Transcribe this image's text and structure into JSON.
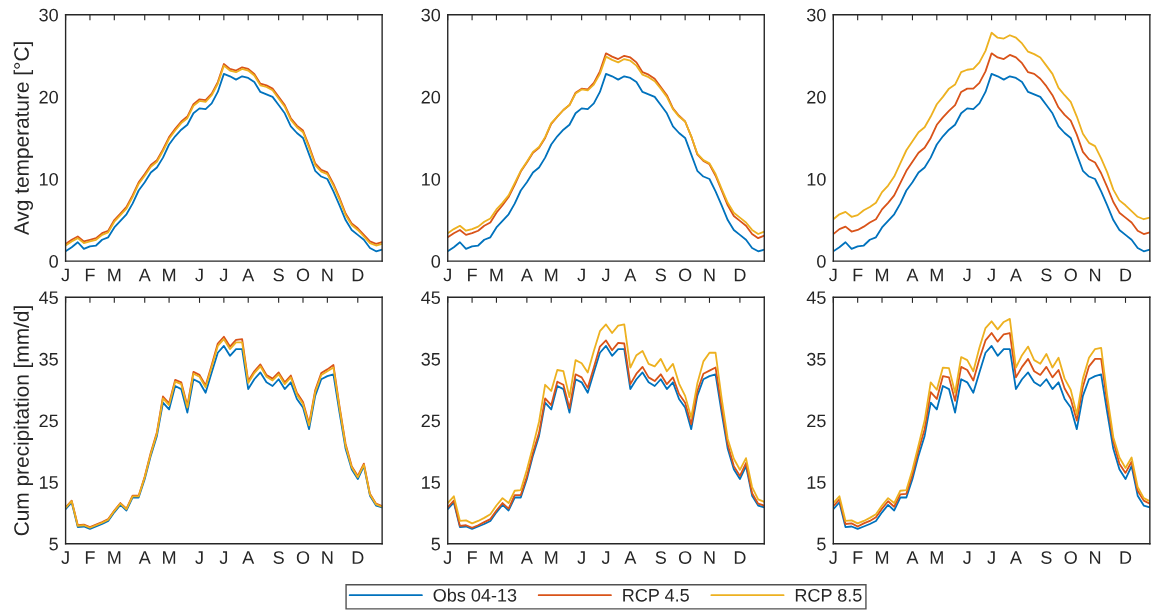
{
  "chart_data": [
    {
      "type": "line",
      "ylabel": "Avg temperature [°C]",
      "ylim": [
        0,
        30
      ],
      "yticks": [
        0,
        10,
        20,
        30
      ],
      "categories": [
        "J",
        null,
        null,
        null,
        "F",
        null,
        null,
        null,
        "M",
        null,
        null,
        null,
        null,
        "A",
        null,
        null,
        null,
        "M",
        null,
        null,
        null,
        null,
        "J",
        null,
        null,
        null,
        "J",
        null,
        null,
        null,
        "A",
        null,
        null,
        null,
        null,
        "S",
        null,
        null,
        null,
        "O",
        null,
        null,
        null,
        "N",
        null,
        null,
        null,
        null,
        "D",
        null,
        null,
        null,
        null
      ],
      "series": [
        {
          "color": "#0072bd",
          "values": [
            1.2,
            1.7,
            2.3,
            1.5,
            1.8,
            1.9,
            2.6,
            2.9,
            4.1,
            4.9,
            5.7,
            7.0,
            8.6,
            9.6,
            10.8,
            11.4,
            12.6,
            14.2,
            15.2,
            16.0,
            16.6,
            18.0,
            18.6,
            18.5,
            19.2,
            20.6,
            22.8,
            22.5,
            22.1,
            22.5,
            22.3,
            21.8,
            20.6,
            20.3,
            20.0,
            19.0,
            18.0,
            16.4,
            15.6,
            15.0,
            13.0,
            11.0,
            10.3,
            10.0,
            8.5,
            6.8,
            5.0,
            3.8,
            3.2,
            2.6,
            1.6,
            1.2,
            1.4
          ]
        },
        {
          "color": "#d95319",
          "values": [
            2.1,
            2.6,
            3.0,
            2.4,
            2.6,
            2.8,
            3.4,
            3.7,
            5.0,
            5.8,
            6.6,
            8.0,
            9.6,
            10.6,
            11.7,
            12.3,
            13.6,
            15.1,
            16.1,
            17.0,
            17.6,
            19.1,
            19.7,
            19.6,
            20.4,
            21.8,
            24.0,
            23.4,
            23.2,
            23.6,
            23.4,
            22.8,
            21.6,
            21.4,
            21.0,
            20.0,
            19.0,
            17.4,
            16.5,
            15.9,
            14.0,
            11.9,
            11.1,
            10.8,
            9.4,
            7.7,
            5.8,
            4.6,
            4.0,
            3.2,
            2.4,
            2.1,
            2.3
          ]
        },
        {
          "color": "#edb120",
          "values": [
            1.9,
            2.4,
            2.8,
            2.2,
            2.4,
            2.6,
            3.2,
            3.5,
            4.8,
            5.6,
            6.4,
            7.8,
            9.4,
            10.4,
            11.5,
            12.1,
            13.4,
            14.9,
            15.9,
            16.8,
            17.4,
            18.9,
            19.5,
            19.4,
            20.2,
            21.6,
            23.8,
            23.2,
            23.0,
            23.4,
            23.2,
            22.6,
            21.4,
            21.2,
            20.8,
            19.8,
            18.8,
            17.2,
            16.3,
            15.7,
            13.8,
            11.7,
            10.9,
            10.6,
            9.2,
            7.5,
            5.6,
            4.4,
            3.8,
            3.0,
            2.2,
            1.9,
            2.1
          ]
        }
      ]
    },
    {
      "type": "line",
      "ylim": [
        0,
        30
      ],
      "yticks": [
        0,
        10,
        20,
        30
      ],
      "categories": [
        "J",
        null,
        null,
        null,
        "F",
        null,
        null,
        null,
        "M",
        null,
        null,
        null,
        null,
        "A",
        null,
        null,
        null,
        "M",
        null,
        null,
        null,
        null,
        "J",
        null,
        null,
        null,
        "J",
        null,
        null,
        null,
        "A",
        null,
        null,
        null,
        null,
        "S",
        null,
        null,
        null,
        "O",
        null,
        null,
        null,
        "N",
        null,
        null,
        null,
        null,
        "D",
        null,
        null,
        null,
        null
      ],
      "series": [
        {
          "color": "#0072bd",
          "values": [
            1.2,
            1.7,
            2.3,
            1.5,
            1.8,
            1.9,
            2.6,
            2.9,
            4.1,
            4.9,
            5.7,
            7.0,
            8.6,
            9.6,
            10.8,
            11.4,
            12.6,
            14.2,
            15.2,
            16.0,
            16.6,
            18.0,
            18.6,
            18.5,
            19.2,
            20.6,
            22.8,
            22.5,
            22.1,
            22.5,
            22.3,
            21.8,
            20.6,
            20.3,
            20.0,
            19.0,
            18.0,
            16.4,
            15.6,
            15.0,
            13.0,
            11.0,
            10.3,
            10.0,
            8.5,
            6.8,
            5.0,
            3.8,
            3.2,
            2.6,
            1.6,
            1.2,
            1.4
          ]
        },
        {
          "color": "#d95319",
          "values": [
            2.9,
            3.4,
            3.8,
            3.2,
            3.4,
            3.7,
            4.3,
            4.7,
            5.9,
            6.8,
            7.8,
            9.3,
            10.9,
            12.0,
            13.2,
            13.8,
            15.0,
            16.7,
            17.6,
            18.4,
            19.0,
            20.5,
            21.0,
            20.9,
            21.7,
            23.1,
            25.3,
            24.9,
            24.6,
            25.0,
            24.8,
            24.2,
            23.0,
            22.7,
            22.2,
            21.2,
            20.2,
            18.6,
            17.7,
            17.0,
            15.2,
            13.0,
            12.2,
            11.8,
            10.4,
            8.6,
            6.8,
            5.5,
            4.9,
            4.3,
            3.3,
            2.8,
            3.1
          ]
        },
        {
          "color": "#edb120",
          "values": [
            3.4,
            3.9,
            4.3,
            3.7,
            3.9,
            4.2,
            4.8,
            5.2,
            6.3,
            7.1,
            8.0,
            9.5,
            11.0,
            12.1,
            13.3,
            13.9,
            15.1,
            16.8,
            17.6,
            18.4,
            19.0,
            20.4,
            20.9,
            20.8,
            21.5,
            22.8,
            24.9,
            24.5,
            24.2,
            24.6,
            24.4,
            23.8,
            22.7,
            22.4,
            21.9,
            21.0,
            20.0,
            18.5,
            17.6,
            17.0,
            15.2,
            13.1,
            12.3,
            11.9,
            10.6,
            8.8,
            7.1,
            5.9,
            5.3,
            4.7,
            3.8,
            3.3,
            3.6
          ]
        }
      ]
    },
    {
      "type": "line",
      "ylim": [
        0,
        30
      ],
      "yticks": [
        0,
        10,
        20,
        30
      ],
      "categories": [
        "J",
        null,
        null,
        null,
        "F",
        null,
        null,
        null,
        "M",
        null,
        null,
        null,
        null,
        "A",
        null,
        null,
        null,
        "M",
        null,
        null,
        null,
        null,
        "J",
        null,
        null,
        null,
        "J",
        null,
        null,
        null,
        "A",
        null,
        null,
        null,
        null,
        "S",
        null,
        null,
        null,
        "O",
        null,
        null,
        null,
        "N",
        null,
        null,
        null,
        null,
        "D",
        null,
        null,
        null,
        null
      ],
      "series": [
        {
          "color": "#0072bd",
          "values": [
            1.2,
            1.7,
            2.3,
            1.5,
            1.8,
            1.9,
            2.6,
            2.9,
            4.1,
            4.9,
            5.7,
            7.0,
            8.6,
            9.6,
            10.8,
            11.4,
            12.6,
            14.2,
            15.2,
            16.0,
            16.6,
            18.0,
            18.6,
            18.5,
            19.2,
            20.6,
            22.8,
            22.5,
            22.1,
            22.5,
            22.3,
            21.8,
            20.6,
            20.3,
            20.0,
            19.0,
            18.0,
            16.4,
            15.6,
            15.0,
            13.0,
            11.0,
            10.3,
            10.0,
            8.5,
            6.8,
            5.0,
            3.8,
            3.2,
            2.6,
            1.6,
            1.2,
            1.4
          ]
        },
        {
          "color": "#d95319",
          "values": [
            3.3,
            3.9,
            4.2,
            3.6,
            3.8,
            4.2,
            4.7,
            5.1,
            6.3,
            7.1,
            8.0,
            9.5,
            11.0,
            12.1,
            13.2,
            13.8,
            15.0,
            16.6,
            17.5,
            18.3,
            19.0,
            20.6,
            21.0,
            21.0,
            21.7,
            23.1,
            25.3,
            24.8,
            24.6,
            25.1,
            24.8,
            24.1,
            23.0,
            22.8,
            22.2,
            21.3,
            20.2,
            18.7,
            17.8,
            17.1,
            15.4,
            13.3,
            12.4,
            12.0,
            10.7,
            9.0,
            7.2,
            5.9,
            5.3,
            4.7,
            3.7,
            3.3,
            3.5
          ]
        },
        {
          "color": "#edb120",
          "values": [
            5.1,
            5.7,
            6.0,
            5.4,
            5.6,
            6.2,
            6.6,
            7.1,
            8.4,
            9.2,
            10.3,
            11.9,
            13.5,
            14.6,
            15.7,
            16.3,
            17.6,
            19.1,
            20.0,
            21.0,
            21.5,
            23.0,
            23.3,
            23.4,
            24.2,
            25.6,
            27.8,
            27.2,
            27.1,
            27.5,
            27.2,
            26.5,
            25.5,
            25.2,
            24.8,
            23.8,
            22.8,
            21.1,
            20.2,
            19.4,
            17.6,
            15.5,
            14.4,
            14.0,
            12.5,
            10.8,
            8.7,
            7.4,
            6.8,
            6.1,
            5.4,
            5.1,
            5.3
          ]
        }
      ]
    },
    {
      "type": "line",
      "ylabel": "Cum precipitation [mm/d]",
      "ylim": [
        5,
        45
      ],
      "yticks": [
        5,
        15,
        25,
        35,
        45
      ],
      "categories": [
        "J",
        null,
        null,
        null,
        "F",
        null,
        null,
        null,
        "M",
        null,
        null,
        null,
        null,
        "A",
        null,
        null,
        null,
        "M",
        null,
        null,
        null,
        null,
        "J",
        null,
        null,
        null,
        "J",
        null,
        null,
        null,
        "A",
        null,
        null,
        null,
        null,
        "S",
        null,
        null,
        null,
        "O",
        null,
        null,
        null,
        "N",
        null,
        null,
        null,
        null,
        "D",
        null,
        null,
        null,
        null
      ],
      "series": [
        {
          "color": "#0072bd",
          "values": [
            10.6,
            11.7,
            7.7,
            7.8,
            7.4,
            7.8,
            8.2,
            8.7,
            10.1,
            11.3,
            10.4,
            12.5,
            12.5,
            15.5,
            19.3,
            22.5,
            27.9,
            26.8,
            30.6,
            30.1,
            26.3,
            31.7,
            31.2,
            29.5,
            32.8,
            36.0,
            37.1,
            35.5,
            36.6,
            36.6,
            30.1,
            31.7,
            32.8,
            31.2,
            30.6,
            31.7,
            30.1,
            31.2,
            28.5,
            27.1,
            23.6,
            29.0,
            31.7,
            32.2,
            32.5,
            26.3,
            20.4,
            17.1,
            15.5,
            17.6,
            12.8,
            11.2,
            10.9
          ]
        },
        {
          "color": "#d95319",
          "values": [
            10.9,
            12.0,
            8.0,
            8.1,
            7.7,
            8.1,
            8.5,
            9.0,
            10.4,
            11.6,
            10.7,
            12.8,
            12.8,
            15.9,
            19.8,
            23.1,
            28.9,
            27.8,
            31.6,
            31.2,
            27.4,
            32.9,
            32.4,
            30.7,
            34.0,
            37.5,
            38.6,
            37.0,
            38.1,
            38.2,
            31.4,
            33.0,
            34.1,
            32.4,
            31.8,
            32.8,
            31.2,
            32.3,
            29.5,
            28.0,
            24.5,
            29.9,
            32.7,
            33.3,
            34.0,
            27.3,
            21.2,
            17.6,
            16.0,
            18.0,
            13.1,
            11.5,
            11.1
          ]
        },
        {
          "color": "#edb120",
          "values": [
            10.8,
            11.9,
            7.9,
            8.0,
            7.6,
            8.0,
            8.4,
            8.9,
            10.3,
            11.5,
            10.6,
            12.7,
            12.7,
            15.8,
            19.6,
            22.9,
            28.6,
            27.5,
            31.3,
            30.9,
            27.1,
            32.6,
            32.1,
            30.4,
            33.7,
            37.1,
            38.2,
            36.6,
            37.7,
            37.7,
            31.1,
            32.7,
            33.8,
            32.1,
            31.5,
            32.5,
            30.9,
            32.0,
            29.2,
            27.7,
            24.2,
            29.6,
            32.4,
            33.0,
            33.6,
            27.0,
            20.9,
            17.4,
            15.8,
            17.8,
            13.0,
            11.4,
            11.0
          ]
        }
      ]
    },
    {
      "type": "line",
      "legend": "bottom",
      "ylim": [
        5,
        45
      ],
      "yticks": [
        5,
        15,
        25,
        35,
        45
      ],
      "categories": [
        "J",
        null,
        null,
        null,
        "F",
        null,
        null,
        null,
        "M",
        null,
        null,
        null,
        null,
        "A",
        null,
        null,
        null,
        "M",
        null,
        null,
        null,
        null,
        "J",
        null,
        null,
        null,
        "J",
        null,
        null,
        null,
        "A",
        null,
        null,
        null,
        null,
        "S",
        null,
        null,
        null,
        "O",
        null,
        null,
        null,
        "N",
        null,
        null,
        null,
        null,
        "D",
        null,
        null,
        null,
        null
      ],
      "series": [
        {
          "name": "Obs 04-13",
          "color": "#0072bd",
          "values": [
            10.6,
            11.7,
            7.7,
            7.8,
            7.4,
            7.8,
            8.2,
            8.7,
            10.1,
            11.3,
            10.4,
            12.5,
            12.5,
            15.5,
            19.3,
            22.5,
            27.9,
            26.8,
            30.6,
            30.1,
            26.3,
            31.7,
            31.2,
            29.5,
            32.8,
            36.0,
            37.1,
            35.5,
            36.6,
            36.6,
            30.1,
            31.7,
            32.8,
            31.2,
            30.6,
            31.7,
            30.1,
            31.2,
            28.5,
            27.1,
            23.6,
            29.0,
            31.7,
            32.2,
            32.5,
            26.3,
            20.4,
            17.1,
            15.5,
            17.6,
            12.8,
            11.2,
            10.9
          ]
        },
        {
          "name": "RCP 4.5",
          "color": "#d95319",
          "values": [
            10.9,
            12.0,
            7.9,
            8.0,
            7.6,
            8.0,
            8.5,
            9.0,
            10.4,
            11.6,
            10.7,
            12.9,
            12.9,
            15.9,
            19.8,
            23.0,
            28.6,
            27.5,
            31.3,
            30.8,
            27.0,
            32.5,
            32.0,
            30.3,
            33.6,
            37.0,
            38.0,
            36.4,
            37.6,
            37.5,
            30.9,
            32.6,
            33.7,
            32.0,
            31.4,
            32.5,
            30.9,
            32.0,
            29.3,
            27.9,
            24.4,
            29.8,
            32.6,
            33.1,
            33.6,
            27.2,
            21.1,
            17.6,
            16.0,
            18.1,
            13.2,
            11.5,
            11.2
          ]
        },
        {
          "name": "RCP 8.5",
          "color": "#edb120",
          "values": [
            11.6,
            12.7,
            8.7,
            8.8,
            8.3,
            8.7,
            9.2,
            9.8,
            11.2,
            12.4,
            11.6,
            13.6,
            13.7,
            17.0,
            20.8,
            24.8,
            30.8,
            29.8,
            33.2,
            33.0,
            28.8,
            34.8,
            34.3,
            32.8,
            36.3,
            39.5,
            40.6,
            39.2,
            40.4,
            40.6,
            33.6,
            35.6,
            36.3,
            34.2,
            33.8,
            35.0,
            33.0,
            34.2,
            31.0,
            29.0,
            25.5,
            31.0,
            34.6,
            36.0,
            36.0,
            28.6,
            22.0,
            18.8,
            17.0,
            18.9,
            14.2,
            12.2,
            11.8
          ]
        }
      ]
    },
    {
      "type": "line",
      "ylim": [
        5,
        45
      ],
      "yticks": [
        5,
        15,
        25,
        35,
        45
      ],
      "categories": [
        "J",
        null,
        null,
        null,
        "F",
        null,
        null,
        null,
        "M",
        null,
        null,
        null,
        null,
        "A",
        null,
        null,
        null,
        "M",
        null,
        null,
        null,
        null,
        "J",
        null,
        null,
        null,
        "J",
        null,
        null,
        null,
        "A",
        null,
        null,
        null,
        null,
        "S",
        null,
        null,
        null,
        "O",
        null,
        null,
        null,
        "N",
        null,
        null,
        null,
        null,
        "D",
        null,
        null,
        null,
        null
      ],
      "series": [
        {
          "color": "#0072bd",
          "values": [
            10.6,
            11.7,
            7.7,
            7.8,
            7.4,
            7.8,
            8.2,
            8.7,
            10.1,
            11.3,
            10.4,
            12.5,
            12.5,
            15.5,
            19.3,
            22.5,
            27.9,
            26.8,
            30.6,
            30.1,
            26.3,
            31.7,
            31.2,
            29.5,
            32.8,
            36.0,
            37.1,
            35.5,
            36.6,
            36.6,
            30.1,
            31.7,
            32.8,
            31.2,
            30.6,
            31.7,
            30.1,
            31.2,
            28.5,
            27.1,
            23.6,
            29.0,
            31.7,
            32.2,
            32.5,
            26.3,
            20.4,
            17.1,
            15.5,
            17.6,
            12.8,
            11.2,
            10.9
          ]
        },
        {
          "color": "#d95319",
          "values": [
            11.1,
            12.2,
            8.2,
            8.3,
            7.8,
            8.3,
            8.7,
            9.3,
            10.7,
            11.9,
            11.0,
            13.0,
            13.1,
            16.2,
            20.2,
            23.6,
            29.6,
            28.5,
            32.2,
            32.0,
            28.2,
            33.7,
            33.2,
            31.5,
            35.0,
            38.0,
            39.2,
            37.8,
            39.0,
            39.2,
            32.0,
            33.7,
            35.0,
            33.0,
            32.4,
            33.7,
            32.0,
            33.2,
            30.2,
            28.5,
            25.0,
            30.5,
            33.8,
            35.0,
            35.0,
            27.8,
            21.6,
            18.0,
            16.5,
            18.3,
            13.6,
            12.0,
            11.5
          ]
        },
        {
          "color": "#edb120",
          "values": [
            11.6,
            12.7,
            8.7,
            8.8,
            8.3,
            8.7,
            9.2,
            9.8,
            11.2,
            12.4,
            11.6,
            13.6,
            13.7,
            17.0,
            21.0,
            25.0,
            31.2,
            30.0,
            33.6,
            33.5,
            29.5,
            35.3,
            34.8,
            33.0,
            36.8,
            40.0,
            41.1,
            39.8,
            41.0,
            41.5,
            33.6,
            35.6,
            37.0,
            34.8,
            34.2,
            35.8,
            33.6,
            35.2,
            31.8,
            30.0,
            26.0,
            31.8,
            35.2,
            36.6,
            36.8,
            29.0,
            22.3,
            19.0,
            17.3,
            19.0,
            14.2,
            12.4,
            11.9
          ]
        }
      ]
    }
  ]
}
